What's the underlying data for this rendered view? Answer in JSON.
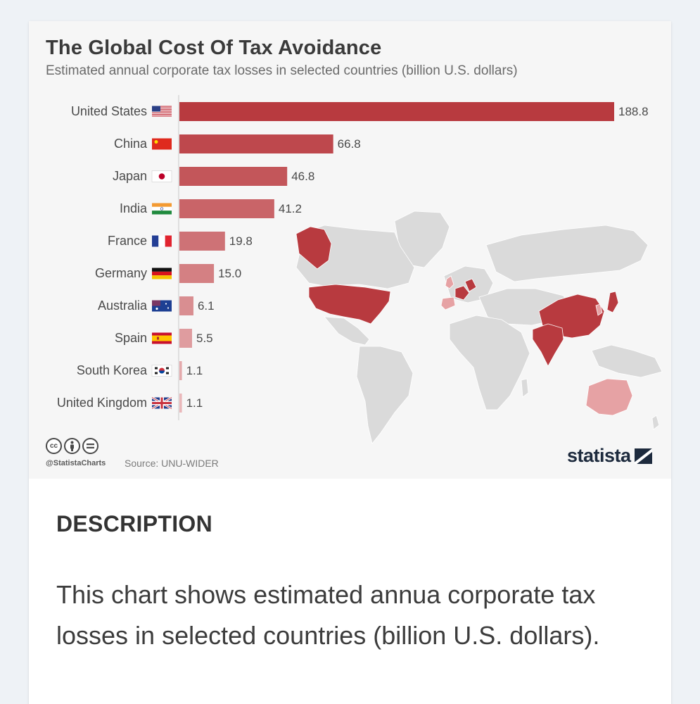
{
  "chart_data": {
    "type": "bar",
    "orientation": "horizontal",
    "title": "The Global Cost Of Tax Avoidance",
    "subtitle": "Estimated annual corporate tax losses in selected countries (billion U.S. dollars)",
    "categories": [
      "United States",
      "China",
      "Japan",
      "India",
      "France",
      "Germany",
      "Australia",
      "Spain",
      "South Korea",
      "United Kingdom"
    ],
    "values": [
      188.8,
      66.8,
      46.8,
      41.2,
      19.8,
      15.0,
      6.1,
      5.5,
      1.1,
      1.1
    ],
    "value_labels": [
      "188.8",
      "66.8",
      "46.8",
      "41.2",
      "19.8",
      "15.0",
      "6.1",
      "5.5",
      "1.1",
      "1.1"
    ],
    "xlim": [
      0,
      188.8
    ],
    "flags": [
      "us-flag-icon",
      "china-flag-icon",
      "japan-flag-icon",
      "india-flag-icon",
      "france-flag-icon",
      "germany-flag-icon",
      "australia-flag-icon",
      "spain-flag-icon",
      "south-korea-flag-icon",
      "uk-flag-icon"
    ],
    "colors": {
      "bar_dark": "#b83a3f",
      "bar_light": "#eab8ba",
      "map_land": "#dadada",
      "map_highlight_dark": "#b83a3f",
      "map_highlight_light": "#e6a2a4"
    }
  },
  "footer": {
    "cc_icons": [
      "cc-icon",
      "by-icon",
      "nd-icon"
    ],
    "handle": "@StatistaCharts",
    "source": "Source: UNU-WIDER",
    "logo": "statista"
  },
  "description": {
    "heading": "DESCRIPTION",
    "text": "This chart shows estimated annua corporate tax losses in selected countries (billion U.S. dollars)."
  }
}
